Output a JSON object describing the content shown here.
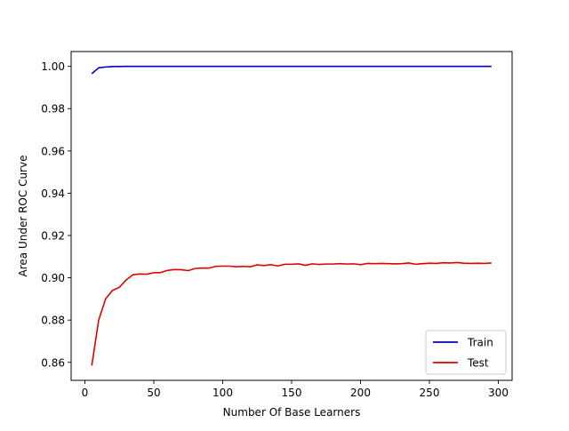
{
  "chart_data": {
    "type": "line",
    "title": "",
    "xlabel": "Number Of Base Learners",
    "ylabel": "Area Under ROC Curve",
    "xlim": [
      -10,
      310
    ],
    "ylim": [
      0.8515,
      1.007
    ],
    "xticks": [
      0,
      50,
      100,
      150,
      200,
      250,
      300
    ],
    "yticks": [
      0.86,
      0.88,
      0.9,
      0.92,
      0.94,
      0.96,
      0.98,
      1.0
    ],
    "ytick_labels": [
      "0.86",
      "0.88",
      "0.90",
      "0.92",
      "0.94",
      "0.96",
      "0.98",
      "1.00"
    ],
    "legend_position": "lower-right",
    "series": [
      {
        "name": "Train",
        "color": "#0000bb",
        "x": [
          5,
          10,
          15,
          20,
          25,
          30,
          40,
          50,
          75,
          100,
          150,
          200,
          250,
          295
        ],
        "y": [
          0.9965,
          0.9993,
          0.9997,
          0.9999,
          0.99995,
          1.0,
          1.0,
          1.0,
          1.0,
          1.0,
          1.0,
          1.0,
          1.0,
          1.0
        ]
      },
      {
        "name": "Test",
        "color": "#e00000",
        "x": [
          5,
          10,
          15,
          20,
          25,
          30,
          35,
          40,
          45,
          50,
          55,
          60,
          65,
          70,
          75,
          80,
          85,
          90,
          95,
          100,
          105,
          110,
          115,
          120,
          125,
          130,
          135,
          140,
          145,
          150,
          155,
          160,
          165,
          170,
          175,
          180,
          185,
          190,
          195,
          200,
          205,
          210,
          215,
          220,
          225,
          230,
          235,
          240,
          245,
          250,
          255,
          260,
          265,
          270,
          275,
          280,
          285,
          290,
          295
        ],
        "y": [
          0.8585,
          0.88,
          0.89,
          0.894,
          0.8955,
          0.899,
          0.9015,
          0.9018,
          0.9017,
          0.9024,
          0.9025,
          0.9035,
          0.9039,
          0.9038,
          0.9034,
          0.9044,
          0.9046,
          0.9046,
          0.9054,
          0.9055,
          0.9055,
          0.9052,
          0.9054,
          0.9052,
          0.9061,
          0.9058,
          0.9062,
          0.9056,
          0.9064,
          0.9064,
          0.9066,
          0.9059,
          0.9066,
          0.9063,
          0.9065,
          0.9065,
          0.9067,
          0.9065,
          0.9066,
          0.9062,
          0.9068,
          0.9067,
          0.9068,
          0.9067,
          0.9066,
          0.9067,
          0.907,
          0.9064,
          0.9067,
          0.9069,
          0.9068,
          0.9071,
          0.907,
          0.9072,
          0.9069,
          0.9068,
          0.9069,
          0.9068,
          0.907
        ]
      }
    ]
  }
}
